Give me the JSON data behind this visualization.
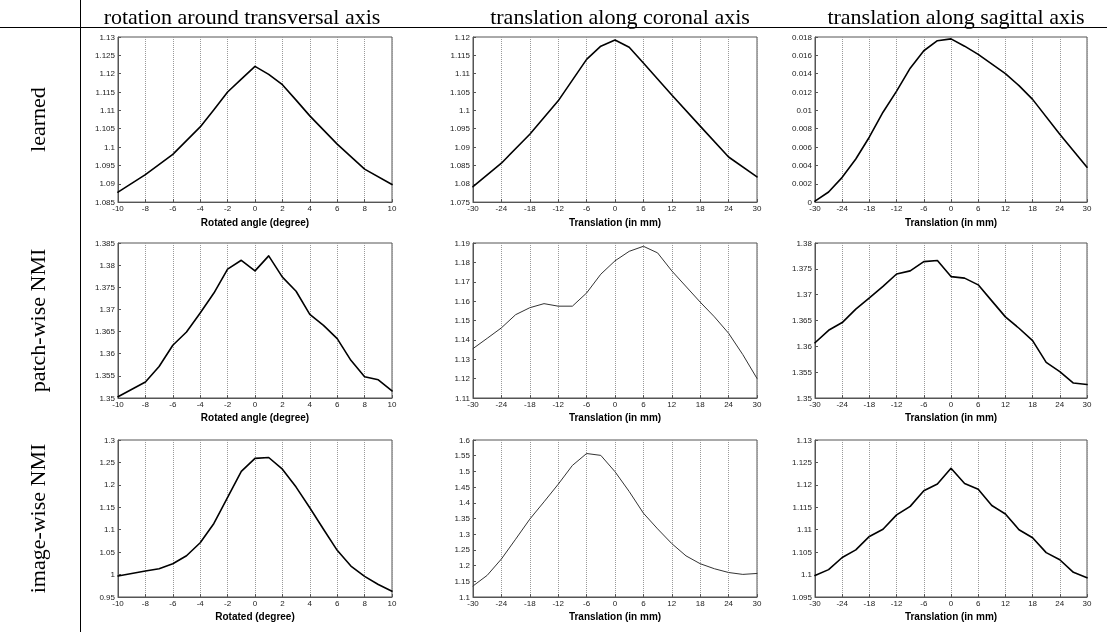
{
  "chart_data": [
    {
      "type": "line",
      "title": "rotation around transversal axis",
      "ylabel": "learned",
      "xlabel": "Rotated angle (degree)",
      "x": [
        -10,
        -8,
        -6,
        -4,
        -3,
        -2,
        -1,
        0,
        1,
        2,
        3,
        4,
        6,
        8,
        10
      ],
      "series": [
        {
          "color": "#000000",
          "values": [
            1.0877,
            1.0925,
            1.098,
            1.1055,
            1.1102,
            1.115,
            1.1185,
            1.122,
            1.1198,
            1.117,
            1.1128,
            1.1085,
            1.1008,
            1.094,
            1.0898
          ]
        }
      ],
      "xlim": [
        -10,
        10
      ],
      "xticks": [
        -10,
        -8,
        -6,
        -4,
        -2,
        0,
        2,
        4,
        6,
        8,
        10
      ],
      "ylim": [
        1.085,
        1.13
      ],
      "yticks": [
        1.085,
        1.09,
        1.095,
        1.1,
        1.105,
        1.11,
        1.115,
        1.12,
        1.125,
        1.13
      ],
      "grid": "x",
      "marker": "none",
      "line_style": "solid"
    },
    {
      "type": "line",
      "title": "translation along coronal axis",
      "xlabel": "Translation (in mm)",
      "x": [
        -30,
        -24,
        -18,
        -12,
        -6,
        -3,
        0,
        3,
        6,
        12,
        18,
        24,
        30
      ],
      "series": [
        {
          "color": "#000000",
          "values": [
            1.0792,
            1.0856,
            1.0935,
            1.1026,
            1.1139,
            1.1175,
            1.1192,
            1.1172,
            1.1129,
            1.1042,
            1.0957,
            1.0873,
            1.0819
          ]
        }
      ],
      "xlim": [
        -30,
        30
      ],
      "xticks": [
        -30,
        -24,
        -18,
        -12,
        -6,
        0,
        6,
        12,
        18,
        24,
        30
      ],
      "ylim": [
        1.075,
        1.12
      ],
      "yticks": [
        1.075,
        1.08,
        1.085,
        1.09,
        1.095,
        1.1,
        1.105,
        1.11,
        1.115,
        1.12
      ],
      "grid": "x",
      "marker": "none",
      "line_style": "solid"
    },
    {
      "type": "line",
      "title": "translation along sagittal axis",
      "xlabel": "Translation (in mm)",
      "x": [
        -30,
        -27,
        -24,
        -21,
        -18,
        -15,
        -12,
        -9,
        -6,
        -3,
        0,
        3,
        6,
        12,
        15,
        18,
        24,
        30
      ],
      "series": [
        {
          "color": "#000000",
          "values": [
            0.0001,
            0.0011,
            0.0027,
            0.0047,
            0.0071,
            0.0098,
            0.0121,
            0.0146,
            0.0165,
            0.0176,
            0.0178,
            0.017,
            0.0161,
            0.014,
            0.0127,
            0.0112,
            0.0074,
            0.0038
          ]
        }
      ],
      "xlim": [
        -30,
        30
      ],
      "xticks": [
        -30,
        -24,
        -18,
        -12,
        -6,
        0,
        6,
        12,
        18,
        24,
        30
      ],
      "ylim": [
        0,
        0.018
      ],
      "yticks": [
        0,
        0.002,
        0.004,
        0.006,
        0.008,
        0.01,
        0.012,
        0.014,
        0.016,
        0.018
      ],
      "grid": "x",
      "marker": "none",
      "line_style": "solid"
    },
    {
      "type": "line",
      "ylabel": "patch-wise NMI",
      "xlabel": "Rotated angle (degree)",
      "x": [
        -10,
        -8,
        -7,
        -6,
        -5,
        -4,
        -3,
        -2,
        -1,
        0,
        1,
        2,
        3,
        4,
        5,
        6,
        7,
        8,
        9,
        10
      ],
      "series": [
        {
          "color": "#000000",
          "values": [
            1.3503,
            1.3536,
            1.3571,
            1.3619,
            1.3649,
            1.3692,
            1.3737,
            1.3791,
            1.3811,
            1.3787,
            1.3821,
            1.3773,
            1.3741,
            1.3689,
            1.3664,
            1.3634,
            1.3585,
            1.3548,
            1.3541,
            1.3516
          ]
        }
      ],
      "xlim": [
        -10,
        10
      ],
      "xticks": [
        -10,
        -8,
        -6,
        -4,
        -2,
        0,
        2,
        4,
        6,
        8,
        10
      ],
      "ylim": [
        1.35,
        1.385
      ],
      "yticks": [
        1.35,
        1.355,
        1.36,
        1.365,
        1.37,
        1.375,
        1.38,
        1.385
      ],
      "grid": "x",
      "marker": "none",
      "line_style": "solid"
    },
    {
      "type": "line",
      "xlabel": "Translation (in mm)",
      "x": [
        -30,
        -27,
        -24,
        -21,
        -18,
        -15,
        -12,
        -9,
        -6,
        -3,
        0,
        3,
        6,
        9,
        12,
        18,
        21,
        24,
        27,
        30
      ],
      "series": [
        {
          "color": "#333333",
          "values": [
            1.1355,
            1.1408,
            1.1462,
            1.153,
            1.1566,
            1.1587,
            1.1574,
            1.1574,
            1.1642,
            1.1739,
            1.1808,
            1.1857,
            1.1883,
            1.1849,
            1.1756,
            1.1595,
            1.1519,
            1.1434,
            1.1324,
            1.1201
          ]
        }
      ],
      "xlim": [
        -30,
        30
      ],
      "xticks": [
        -30,
        -24,
        -18,
        -12,
        -6,
        0,
        6,
        12,
        18,
        24,
        30
      ],
      "ylim": [
        1.11,
        1.19
      ],
      "yticks": [
        1.11,
        1.12,
        1.13,
        1.14,
        1.15,
        1.16,
        1.17,
        1.18,
        1.19
      ],
      "grid": "x",
      "marker": "none",
      "line_style": "solid"
    },
    {
      "type": "line",
      "xlabel": "Translation (in mm)",
      "x": [
        -30,
        -27,
        -24,
        -21,
        -18,
        -15,
        -12,
        -9,
        -6,
        -3,
        0,
        3,
        6,
        9,
        12,
        15,
        18,
        21,
        24,
        27,
        30
      ],
      "series": [
        {
          "color": "#000000",
          "values": [
            1.3607,
            1.3631,
            1.3646,
            1.3672,
            1.3694,
            1.3716,
            1.374,
            1.3746,
            1.3764,
            1.3766,
            1.3735,
            1.3732,
            1.3719,
            1.3688,
            1.3657,
            1.3635,
            1.3611,
            1.3569,
            1.3551,
            1.3529,
            1.3526
          ]
        }
      ],
      "xlim": [
        -30,
        30
      ],
      "xticks": [
        -30,
        -24,
        -18,
        -12,
        -6,
        0,
        6,
        12,
        18,
        24,
        30
      ],
      "ylim": [
        1.35,
        1.38
      ],
      "yticks": [
        1.35,
        1.355,
        1.36,
        1.365,
        1.37,
        1.375,
        1.38
      ],
      "grid": "x",
      "marker": "none",
      "line_style": "solid"
    },
    {
      "type": "line",
      "ylabel": "image-wise NMI",
      "xlabel": "Rotated (degree)",
      "x": [
        -10,
        -8,
        -7,
        -6,
        -5,
        -4,
        -3,
        -2,
        -1,
        0,
        1,
        2,
        3,
        4,
        5,
        6,
        7,
        8,
        9,
        10
      ],
      "series": [
        {
          "color": "#000000",
          "values": [
            0.997,
            1.008,
            1.013,
            1.024,
            1.042,
            1.071,
            1.114,
            1.172,
            1.23,
            1.259,
            1.261,
            1.235,
            1.195,
            1.149,
            1.101,
            1.054,
            1.019,
            0.996,
            0.978,
            0.963
          ]
        }
      ],
      "xlim": [
        -10,
        10
      ],
      "xticks": [
        -10,
        -8,
        -6,
        -4,
        -2,
        0,
        2,
        4,
        6,
        8,
        10
      ],
      "ylim": [
        0.95,
        1.3
      ],
      "yticks": [
        0.95,
        1,
        1.05,
        1.1,
        1.15,
        1.2,
        1.25,
        1.3
      ],
      "grid": "x",
      "marker": "none",
      "line_style": "solid"
    },
    {
      "type": "line",
      "xlabel": "Translation (in mm)",
      "x": [
        -30,
        -27,
        -24,
        -21,
        -18,
        -15,
        -12,
        -9,
        -6,
        -3,
        0,
        3,
        6,
        9,
        12,
        15,
        18,
        21,
        24,
        27,
        30
      ],
      "series": [
        {
          "color": "#333333",
          "values": [
            1.135,
            1.169,
            1.221,
            1.284,
            1.348,
            1.403,
            1.459,
            1.519,
            1.557,
            1.551,
            1.499,
            1.436,
            1.367,
            1.317,
            1.27,
            1.231,
            1.206,
            1.19,
            1.178,
            1.172,
            1.175
          ]
        }
      ],
      "xlim": [
        -30,
        30
      ],
      "xticks": [
        -30,
        -24,
        -18,
        -12,
        -6,
        0,
        6,
        12,
        18,
        24,
        30
      ],
      "ylim": [
        1.1,
        1.6
      ],
      "yticks": [
        1.1,
        1.15,
        1.2,
        1.25,
        1.3,
        1.35,
        1.4,
        1.45,
        1.5,
        1.55,
        1.6
      ],
      "grid": "x",
      "marker": "none",
      "line_style": "solid"
    },
    {
      "type": "line",
      "xlabel": "Translation (in mm)",
      "x": [
        -30,
        -27,
        -24,
        -21,
        -18,
        -15,
        -12,
        -9,
        -6,
        -3,
        0,
        3,
        6,
        9,
        12,
        15,
        18,
        21,
        24,
        27,
        30
      ],
      "series": [
        {
          "color": "#000000",
          "values": [
            1.0998,
            1.1011,
            1.1038,
            1.1055,
            1.1085,
            1.1101,
            1.1133,
            1.1152,
            1.1187,
            1.1202,
            1.1237,
            1.1203,
            1.119,
            1.1154,
            1.1135,
            1.11,
            1.1082,
            1.1049,
            1.1033,
            1.1005,
            1.0993
          ]
        }
      ],
      "xlim": [
        -30,
        30
      ],
      "xticks": [
        -30,
        -24,
        -18,
        -12,
        -6,
        0,
        6,
        12,
        18,
        24,
        30
      ],
      "ylim": [
        1.095,
        1.13
      ],
      "yticks": [
        1.095,
        1.1,
        1.105,
        1.11,
        1.115,
        1.12,
        1.125,
        1.13
      ],
      "grid": "x",
      "marker": "none",
      "line_style": "solid"
    }
  ]
}
